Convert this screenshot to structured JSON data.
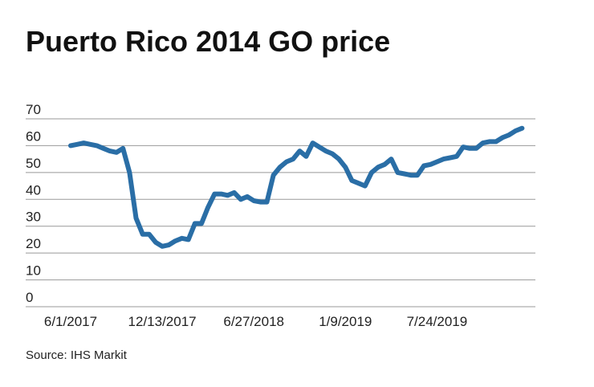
{
  "chart_data": {
    "type": "line",
    "title": "Puerto Rico 2014 GO price",
    "source": "Source: IHS Markit",
    "categories": [
      "6/1/2017",
      null,
      null,
      null,
      null,
      null,
      null,
      null,
      null,
      null,
      null,
      null,
      null,
      null,
      "12/13/2017",
      null,
      null,
      null,
      null,
      null,
      null,
      null,
      null,
      null,
      null,
      null,
      null,
      null,
      "6/27/2018",
      null,
      null,
      null,
      null,
      null,
      null,
      null,
      null,
      null,
      null,
      null,
      null,
      null,
      "1/9/2019",
      null,
      null,
      null,
      null,
      null,
      null,
      null,
      null,
      null,
      null,
      null,
      null,
      null,
      "7/24/2019",
      null,
      null,
      null,
      null,
      null,
      null,
      null,
      null,
      null,
      null,
      null,
      null,
      null
    ],
    "values": [
      60,
      60.5,
      61,
      60.5,
      60,
      59,
      58,
      57.5,
      59,
      50,
      33,
      27,
      27,
      24,
      22.5,
      23,
      24.5,
      25.5,
      25,
      31,
      31,
      37,
      42,
      42,
      41.5,
      42.5,
      40,
      41,
      39.5,
      39,
      39,
      49,
      52,
      54,
      55,
      58,
      56,
      61,
      59.5,
      58,
      57,
      55,
      52,
      47,
      46,
      45,
      50,
      52,
      53,
      55,
      50,
      49.5,
      49,
      49,
      52.5,
      53,
      54,
      55,
      55.5,
      56,
      59.5,
      59,
      59,
      61,
      61.5,
      61.5,
      63,
      64,
      65.5,
      66.5
    ],
    "color": "#2a6ea6",
    "ylim": [
      0,
      70
    ],
    "yticks": [
      0,
      10,
      20,
      30,
      40,
      50,
      60,
      70
    ],
    "grid": true
  }
}
